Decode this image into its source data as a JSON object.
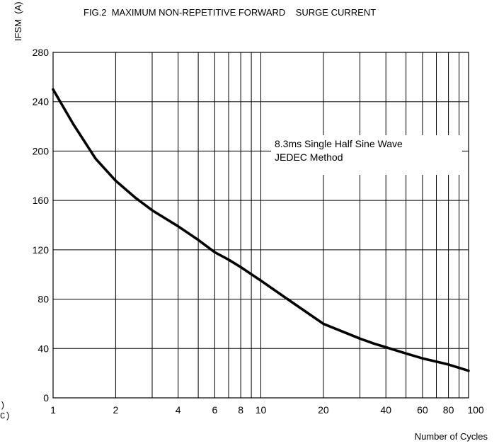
{
  "chart_data": {
    "type": "line",
    "title": "FIG.2  MAXIMUM NON-REPETITIVE FORWARD    SURGE CURRENT",
    "xlabel": "Number of Cycles",
    "ylabel": "IFSM  (A)",
    "x_scale": "log",
    "xlim": [
      1,
      100
    ],
    "ylim": [
      0,
      280
    ],
    "x_ticks": [
      1,
      2,
      4,
      6,
      8,
      10,
      20,
      40,
      60,
      80,
      100
    ],
    "x_tick_labels": [
      "1",
      "2",
      "4",
      "6",
      "8",
      "10",
      "20",
      "40",
      "60",
      "80",
      "100"
    ],
    "x_grid": [
      2,
      3,
      4,
      5,
      6,
      7,
      8,
      9,
      10,
      20,
      30,
      40,
      50,
      60,
      70,
      80,
      90
    ],
    "y_ticks": [
      0,
      40,
      80,
      120,
      160,
      200,
      240,
      280
    ],
    "y_tick_labels": [
      "0",
      "40",
      "80",
      "120",
      "160",
      "200",
      "240",
      "280"
    ],
    "grid": true,
    "annotation": [
      "8.3ms Single Half Sine Wave",
      "JEDEC Method"
    ],
    "series": [
      {
        "color": "#000000",
        "x": [
          1,
          1.25,
          1.6,
          2,
          2.5,
          3,
          4,
          5,
          6,
          7,
          8,
          10,
          14,
          20,
          30,
          35,
          40,
          50,
          60,
          80,
          100
        ],
        "y": [
          250,
          222,
          194,
          176,
          162,
          152,
          139,
          128,
          118,
          112,
          106,
          95,
          78,
          60,
          48,
          44,
          41,
          36,
          32,
          27,
          22
        ]
      }
    ]
  },
  "margin_text": [
    ")",
    "C)"
  ]
}
